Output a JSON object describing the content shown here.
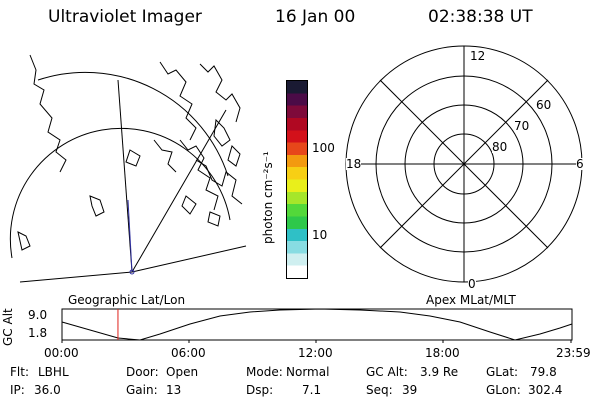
{
  "header": {
    "title": "Ultraviolet Imager",
    "date": "16 Jan 00",
    "time": "02:38:38 UT"
  },
  "colorbar": {
    "unit_label": "photon cm⁻²s⁻¹",
    "ticks": [
      "100",
      "10"
    ],
    "colors": [
      "#ffffff",
      "#cfeff0",
      "#88dce2",
      "#2fc0c6",
      "#2ec84a",
      "#53d83a",
      "#a6e62a",
      "#e9ef1b",
      "#f7cf14",
      "#f39a0f",
      "#e7471a",
      "#d3111a",
      "#b00822",
      "#7e0a3a",
      "#4b0b47",
      "#1a1a33"
    ]
  },
  "polar_plot": {
    "mlt_labels": {
      "top": "12",
      "left": "18",
      "right": "6",
      "bottom": "0"
    },
    "lat_labels": [
      "60",
      "70",
      "80"
    ]
  },
  "panel_labels": {
    "left": "Geographic Lat/Lon",
    "right": "Apex MLat/MLT"
  },
  "timeline": {
    "y_label": "GC Alt",
    "y_ticks": [
      "9.0",
      "1.8"
    ],
    "x_ticks": [
      "00:00",
      "06:00",
      "12:00",
      "18:00",
      "23:59"
    ],
    "marker_time": "02:38",
    "marker_color": "#e0201a"
  },
  "info": {
    "row1": [
      {
        "label": "Flt:",
        "value": "LBHL"
      },
      {
        "label": "Door:",
        "value": "Open"
      },
      {
        "label": "Mode:",
        "value": "Normal"
      },
      {
        "label": "GC Alt:",
        "value": "3.9 Re"
      },
      {
        "label": "GLat:",
        "value": "79.8"
      }
    ],
    "row2": [
      {
        "label": "IP:",
        "value": "36.0"
      },
      {
        "label": "Gain:",
        "value": "13"
      },
      {
        "label": "Dsp:",
        "value": "7.1"
      },
      {
        "label": "Seq:",
        "value": "39"
      },
      {
        "label": "GLon:",
        "value": "302.4"
      }
    ]
  }
}
